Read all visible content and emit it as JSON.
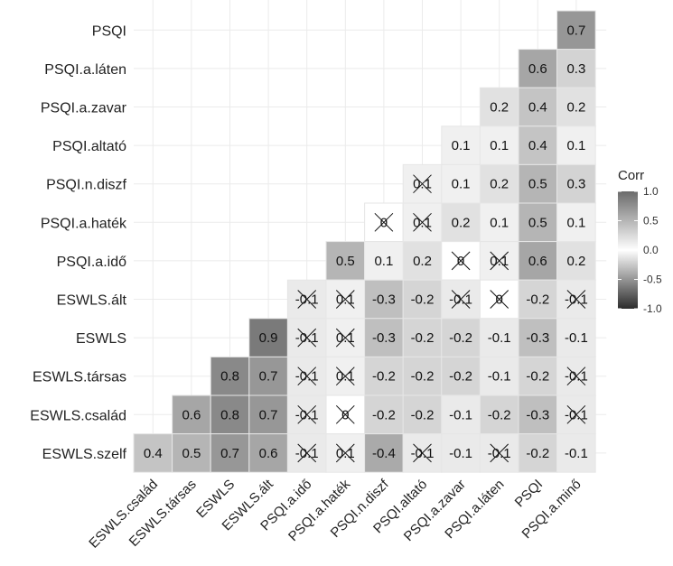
{
  "chart_data": {
    "type": "heatmap",
    "title": "",
    "legend": {
      "title": "Corr",
      "ticks": [
        1.0,
        0.5,
        0.0,
        -0.5,
        -1.0
      ],
      "tick_labels": [
        "1.0",
        "0.5",
        "0.0",
        "-0.5",
        "-1.0"
      ],
      "placement": "right"
    },
    "color_scale": {
      "low": "#2b2b2b",
      "mid": "#ffffff",
      "high": "#6b6b6b",
      "limits": [
        -1,
        1
      ]
    },
    "grid": true,
    "x_labels": [
      "ESWLS.család",
      "ESWLS.társas",
      "ESWLS",
      "ESWLS.ált",
      "PSQI.a.idő",
      "PSQI.a.haték",
      "PSQI.n.diszf",
      "PSQI.altató",
      "PSQI.a.zavar",
      "PSQI.a.láten",
      "PSQI",
      "PSQI.a.minő"
    ],
    "y_labels": [
      "PSQI",
      "PSQI.a.láten",
      "PSQI.a.zavar",
      "PSQI.altató",
      "PSQI.n.diszf",
      "PSQI.a.haték",
      "PSQI.a.idő",
      "ESWLS.ált",
      "ESWLS",
      "ESWLS.társas",
      "ESWLS.család",
      "ESWLS.szelf"
    ],
    "cells": [
      {
        "row": "PSQI",
        "col": "PSQI.a.minő",
        "value": 0.7,
        "label": "0.7",
        "crossed": false
      },
      {
        "row": "PSQI.a.láten",
        "col": "PSQI",
        "value": 0.6,
        "label": "0.6",
        "crossed": false
      },
      {
        "row": "PSQI.a.láten",
        "col": "PSQI.a.minő",
        "value": 0.3,
        "label": "0.3",
        "crossed": false
      },
      {
        "row": "PSQI.a.zavar",
        "col": "PSQI.a.láten",
        "value": 0.2,
        "label": "0.2",
        "crossed": false
      },
      {
        "row": "PSQI.a.zavar",
        "col": "PSQI",
        "value": 0.4,
        "label": "0.4",
        "crossed": false
      },
      {
        "row": "PSQI.a.zavar",
        "col": "PSQI.a.minő",
        "value": 0.2,
        "label": "0.2",
        "crossed": false
      },
      {
        "row": "PSQI.altató",
        "col": "PSQI.a.zavar",
        "value": 0.1,
        "label": "0.1",
        "crossed": false
      },
      {
        "row": "PSQI.altató",
        "col": "PSQI.a.láten",
        "value": 0.1,
        "label": "0.1",
        "crossed": false
      },
      {
        "row": "PSQI.altató",
        "col": "PSQI",
        "value": 0.4,
        "label": "0.4",
        "crossed": false
      },
      {
        "row": "PSQI.altató",
        "col": "PSQI.a.minő",
        "value": 0.1,
        "label": "0.1",
        "crossed": false
      },
      {
        "row": "PSQI.n.diszf",
        "col": "PSQI.altató",
        "value": 0.1,
        "label": "0.1",
        "crossed": true
      },
      {
        "row": "PSQI.n.diszf",
        "col": "PSQI.a.zavar",
        "value": 0.1,
        "label": "0.1",
        "crossed": false
      },
      {
        "row": "PSQI.n.diszf",
        "col": "PSQI.a.láten",
        "value": 0.2,
        "label": "0.2",
        "crossed": false
      },
      {
        "row": "PSQI.n.diszf",
        "col": "PSQI",
        "value": 0.5,
        "label": "0.5",
        "crossed": false
      },
      {
        "row": "PSQI.n.diszf",
        "col": "PSQI.a.minő",
        "value": 0.3,
        "label": "0.3",
        "crossed": false
      },
      {
        "row": "PSQI.a.haték",
        "col": "PSQI.n.diszf",
        "value": 0.0,
        "label": "0",
        "crossed": true
      },
      {
        "row": "PSQI.a.haték",
        "col": "PSQI.altató",
        "value": 0.1,
        "label": "0.1",
        "crossed": true
      },
      {
        "row": "PSQI.a.haték",
        "col": "PSQI.a.zavar",
        "value": 0.2,
        "label": "0.2",
        "crossed": false
      },
      {
        "row": "PSQI.a.haték",
        "col": "PSQI.a.láten",
        "value": 0.1,
        "label": "0.1",
        "crossed": false
      },
      {
        "row": "PSQI.a.haték",
        "col": "PSQI",
        "value": 0.5,
        "label": "0.5",
        "crossed": false
      },
      {
        "row": "PSQI.a.haték",
        "col": "PSQI.a.minő",
        "value": 0.1,
        "label": "0.1",
        "crossed": false
      },
      {
        "row": "PSQI.a.idő",
        "col": "PSQI.a.haték",
        "value": 0.5,
        "label": "0.5",
        "crossed": false
      },
      {
        "row": "PSQI.a.idő",
        "col": "PSQI.n.diszf",
        "value": 0.1,
        "label": "0.1",
        "crossed": false
      },
      {
        "row": "PSQI.a.idő",
        "col": "PSQI.altató",
        "value": 0.2,
        "label": "0.2",
        "crossed": false
      },
      {
        "row": "PSQI.a.idő",
        "col": "PSQI.a.zavar",
        "value": 0.0,
        "label": "0",
        "crossed": true
      },
      {
        "row": "PSQI.a.idő",
        "col": "PSQI.a.láten",
        "value": 0.1,
        "label": "0.1",
        "crossed": true
      },
      {
        "row": "PSQI.a.idő",
        "col": "PSQI",
        "value": 0.6,
        "label": "0.6",
        "crossed": false
      },
      {
        "row": "PSQI.a.idő",
        "col": "PSQI.a.minő",
        "value": 0.2,
        "label": "0.2",
        "crossed": false
      },
      {
        "row": "ESWLS.ált",
        "col": "PSQI.a.idő",
        "value": -0.1,
        "label": "-0.1",
        "crossed": true
      },
      {
        "row": "ESWLS.ált",
        "col": "PSQI.a.haték",
        "value": 0.1,
        "label": "0.1",
        "crossed": true
      },
      {
        "row": "ESWLS.ált",
        "col": "PSQI.n.diszf",
        "value": -0.3,
        "label": "-0.3",
        "crossed": false
      },
      {
        "row": "ESWLS.ált",
        "col": "PSQI.altató",
        "value": -0.2,
        "label": "-0.2",
        "crossed": false
      },
      {
        "row": "ESWLS.ált",
        "col": "PSQI.a.zavar",
        "value": -0.1,
        "label": "-0.1",
        "crossed": true
      },
      {
        "row": "ESWLS.ált",
        "col": "PSQI.a.láten",
        "value": 0.0,
        "label": "0",
        "crossed": true
      },
      {
        "row": "ESWLS.ált",
        "col": "PSQI",
        "value": -0.2,
        "label": "-0.2",
        "crossed": false
      },
      {
        "row": "ESWLS.ált",
        "col": "PSQI.a.minő",
        "value": -0.1,
        "label": "-0.1",
        "crossed": true
      },
      {
        "row": "ESWLS",
        "col": "ESWLS.ált",
        "value": 0.9,
        "label": "0.9",
        "crossed": false
      },
      {
        "row": "ESWLS",
        "col": "PSQI.a.idő",
        "value": -0.1,
        "label": "-0.1",
        "crossed": true
      },
      {
        "row": "ESWLS",
        "col": "PSQI.a.haték",
        "value": 0.1,
        "label": "0.1",
        "crossed": true
      },
      {
        "row": "ESWLS",
        "col": "PSQI.n.diszf",
        "value": -0.3,
        "label": "-0.3",
        "crossed": false
      },
      {
        "row": "ESWLS",
        "col": "PSQI.altató",
        "value": -0.2,
        "label": "-0.2",
        "crossed": false
      },
      {
        "row": "ESWLS",
        "col": "PSQI.a.zavar",
        "value": -0.2,
        "label": "-0.2",
        "crossed": false
      },
      {
        "row": "ESWLS",
        "col": "PSQI.a.láten",
        "value": -0.1,
        "label": "-0.1",
        "crossed": false
      },
      {
        "row": "ESWLS",
        "col": "PSQI",
        "value": -0.3,
        "label": "-0.3",
        "crossed": false
      },
      {
        "row": "ESWLS",
        "col": "PSQI.a.minő",
        "value": -0.1,
        "label": "-0.1",
        "crossed": false
      },
      {
        "row": "ESWLS.társas",
        "col": "ESWLS",
        "value": 0.8,
        "label": "0.8",
        "crossed": false
      },
      {
        "row": "ESWLS.társas",
        "col": "ESWLS.ált",
        "value": 0.7,
        "label": "0.7",
        "crossed": false
      },
      {
        "row": "ESWLS.társas",
        "col": "PSQI.a.idő",
        "value": -0.1,
        "label": "-0.1",
        "crossed": true
      },
      {
        "row": "ESWLS.társas",
        "col": "PSQI.a.haték",
        "value": 0.1,
        "label": "0.1",
        "crossed": true
      },
      {
        "row": "ESWLS.társas",
        "col": "PSQI.n.diszf",
        "value": -0.2,
        "label": "-0.2",
        "crossed": false
      },
      {
        "row": "ESWLS.társas",
        "col": "PSQI.altató",
        "value": -0.2,
        "label": "-0.2",
        "crossed": false
      },
      {
        "row": "ESWLS.társas",
        "col": "PSQI.a.zavar",
        "value": -0.2,
        "label": "-0.2",
        "crossed": false
      },
      {
        "row": "ESWLS.társas",
        "col": "PSQI.a.láten",
        "value": -0.1,
        "label": "-0.1",
        "crossed": false
      },
      {
        "row": "ESWLS.társas",
        "col": "PSQI",
        "value": -0.2,
        "label": "-0.2",
        "crossed": false
      },
      {
        "row": "ESWLS.társas",
        "col": "PSQI.a.minő",
        "value": -0.1,
        "label": "-0.1",
        "crossed": true
      },
      {
        "row": "ESWLS.család",
        "col": "ESWLS.társas",
        "value": 0.6,
        "label": "0.6",
        "crossed": false
      },
      {
        "row": "ESWLS.család",
        "col": "ESWLS",
        "value": 0.8,
        "label": "0.8",
        "crossed": false
      },
      {
        "row": "ESWLS.család",
        "col": "ESWLS.ált",
        "value": 0.7,
        "label": "0.7",
        "crossed": false
      },
      {
        "row": "ESWLS.család",
        "col": "PSQI.a.idő",
        "value": -0.1,
        "label": "-0.1",
        "crossed": true
      },
      {
        "row": "ESWLS.család",
        "col": "PSQI.a.haték",
        "value": 0.0,
        "label": "0",
        "crossed": true
      },
      {
        "row": "ESWLS.család",
        "col": "PSQI.n.diszf",
        "value": -0.2,
        "label": "-0.2",
        "crossed": false
      },
      {
        "row": "ESWLS.család",
        "col": "PSQI.altató",
        "value": -0.2,
        "label": "-0.2",
        "crossed": false
      },
      {
        "row": "ESWLS.család",
        "col": "PSQI.a.zavar",
        "value": -0.1,
        "label": "-0.1",
        "crossed": false
      },
      {
        "row": "ESWLS.család",
        "col": "PSQI.a.láten",
        "value": -0.2,
        "label": "-0.2",
        "crossed": false
      },
      {
        "row": "ESWLS.család",
        "col": "PSQI",
        "value": -0.3,
        "label": "-0.3",
        "crossed": false
      },
      {
        "row": "ESWLS.család",
        "col": "PSQI.a.minő",
        "value": -0.1,
        "label": "-0.1",
        "crossed": true
      },
      {
        "row": "ESWLS.szelf",
        "col": "ESWLS.család",
        "value": 0.4,
        "label": "0.4",
        "crossed": false
      },
      {
        "row": "ESWLS.szelf",
        "col": "ESWLS.társas",
        "value": 0.5,
        "label": "0.5",
        "crossed": false
      },
      {
        "row": "ESWLS.szelf",
        "col": "ESWLS",
        "value": 0.7,
        "label": "0.7",
        "crossed": false
      },
      {
        "row": "ESWLS.szelf",
        "col": "ESWLS.ált",
        "value": 0.6,
        "label": "0.6",
        "crossed": false
      },
      {
        "row": "ESWLS.szelf",
        "col": "PSQI.a.idő",
        "value": -0.1,
        "label": "-0.1",
        "crossed": true
      },
      {
        "row": "ESWLS.szelf",
        "col": "PSQI.a.haték",
        "value": 0.1,
        "label": "0.1",
        "crossed": true
      },
      {
        "row": "ESWLS.szelf",
        "col": "PSQI.n.diszf",
        "value": -0.4,
        "label": "-0.4",
        "crossed": false
      },
      {
        "row": "ESWLS.szelf",
        "col": "PSQI.altató",
        "value": -0.1,
        "label": "-0.1",
        "crossed": true
      },
      {
        "row": "ESWLS.szelf",
        "col": "PSQI.a.zavar",
        "value": -0.1,
        "label": "-0.1",
        "crossed": false
      },
      {
        "row": "ESWLS.szelf",
        "col": "PSQI.a.láten",
        "value": -0.1,
        "label": "-0.1",
        "crossed": true
      },
      {
        "row": "ESWLS.szelf",
        "col": "PSQI",
        "value": -0.2,
        "label": "-0.2",
        "crossed": false
      },
      {
        "row": "ESWLS.szelf",
        "col": "PSQI.a.minő",
        "value": -0.1,
        "label": "-0.1",
        "crossed": false
      }
    ]
  }
}
